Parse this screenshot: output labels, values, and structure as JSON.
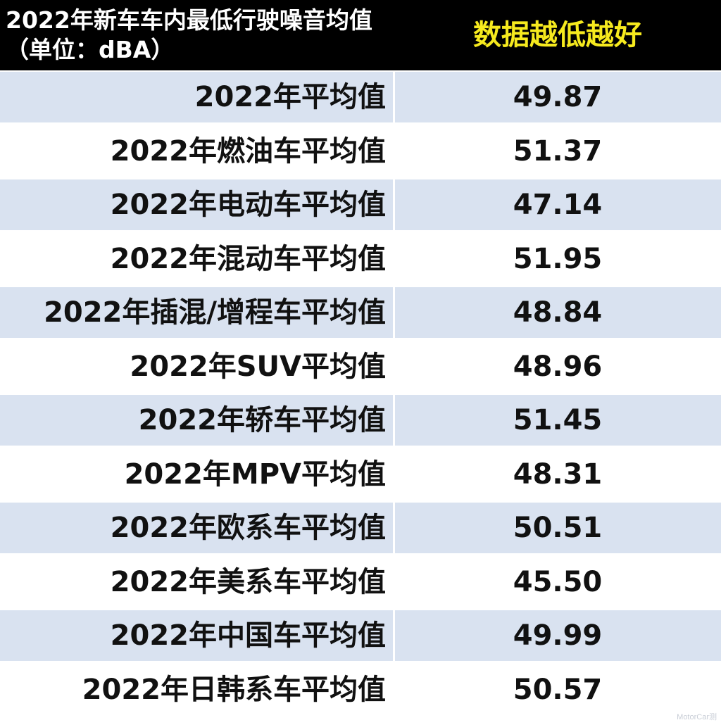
{
  "chart_data": {
    "type": "table",
    "title": "2022年新车车内最低行驶噪音均值\n（单位：dBA）",
    "note": "数据越低越好",
    "categories": [
      "2022年平均值",
      "2022年燃油车平均值",
      "2022年电动车平均值",
      "2022年混动车平均值",
      "2022年插混/增程车平均值",
      "2022年SUV平均值",
      "2022年轿车平均值",
      "2022年MPV平均值",
      "2022年欧系车平均值",
      "2022年美系车平均值",
      "2022年中国车平均值",
      "2022年日韩系车平均值"
    ],
    "values": [
      49.87,
      51.37,
      47.14,
      51.95,
      48.84,
      48.96,
      51.45,
      48.31,
      50.51,
      45.5,
      49.99,
      50.57
    ]
  },
  "colors": {
    "header_bg": "#000000",
    "header_text": "#ffffff",
    "note_text": "#f6ea1e",
    "row_alt": "#d9e2f0",
    "row_plain": "#ffffff",
    "cell_text": "#111111"
  },
  "watermark": "MotorCar测"
}
